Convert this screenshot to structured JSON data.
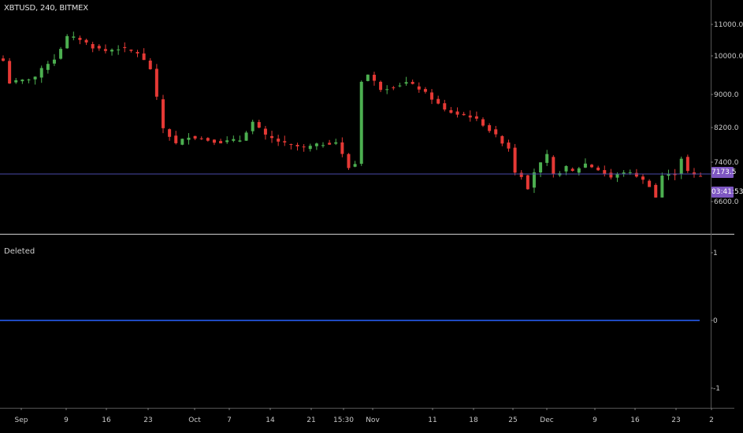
{
  "header": {
    "symbol_label": "XBTUSD, 240, BITMEX"
  },
  "indicator": {
    "label": "Deleted"
  },
  "badges": {
    "last_price": "7173.5",
    "countdown": "03:41:53"
  },
  "colors": {
    "background": "#000000",
    "up": "#4caf50",
    "down": "#e53935",
    "price_line": "#4a4aa8",
    "zero_line": "#2962ff",
    "badge": "#7e57c2",
    "axis_text": "#c8c8c8"
  },
  "chart_data": [
    {
      "type": "candlestick",
      "title": "",
      "ylim": [
        6200,
        11400
      ],
      "y_ticks": [
        "11000.0",
        "10000.0",
        "9000.0",
        "8200.0",
        "7400.0",
        "6600.0"
      ],
      "x_ticks": [
        "Sep",
        "9",
        "16",
        "23",
        "Oct",
        "7",
        "14",
        "21",
        "15:30",
        "Nov",
        "11",
        "18",
        "25",
        "Dec",
        "9",
        "16",
        "23",
        "2"
      ],
      "close_path": [
        [
          0,
          10100
        ],
        [
          1,
          9550
        ],
        [
          3,
          9600
        ],
        [
          5,
          9700
        ],
        [
          7,
          10050
        ],
        [
          8,
          10150
        ],
        [
          10,
          10700
        ],
        [
          12,
          10650
        ],
        [
          14,
          10450
        ],
        [
          16,
          10350
        ],
        [
          18,
          10420
        ],
        [
          21,
          10300
        ],
        [
          23,
          9900
        ],
        [
          25,
          8400
        ],
        [
          27,
          8000
        ],
        [
          29,
          8200
        ],
        [
          32,
          8100
        ],
        [
          34,
          8050
        ],
        [
          37,
          8100
        ],
        [
          39,
          8550
        ],
        [
          41,
          8200
        ],
        [
          44,
          8000
        ],
        [
          47,
          7900
        ],
        [
          50,
          8000
        ],
        [
          52,
          8050
        ],
        [
          54,
          7400
        ],
        [
          55,
          7500
        ],
        [
          56,
          9600
        ],
        [
          57,
          9750
        ],
        [
          59,
          9400
        ],
        [
          61,
          9450
        ],
        [
          63,
          9550
        ],
        [
          65,
          9400
        ],
        [
          67,
          9150
        ],
        [
          69,
          8850
        ],
        [
          71,
          8750
        ],
        [
          73,
          8700
        ],
        [
          75,
          8500
        ],
        [
          77,
          8200
        ],
        [
          79,
          7900
        ],
        [
          80,
          7300
        ],
        [
          81,
          7200
        ],
        [
          82,
          6900
        ],
        [
          83,
          7300
        ],
        [
          85,
          7700
        ],
        [
          86,
          7200
        ],
        [
          88,
          7400
        ],
        [
          89,
          7300
        ],
        [
          91,
          7500
        ],
        [
          93,
          7350
        ],
        [
          95,
          7150
        ],
        [
          97,
          7300
        ],
        [
          99,
          7200
        ],
        [
          101,
          6950
        ],
        [
          102,
          6650
        ],
        [
          103,
          7200
        ],
        [
          105,
          7250
        ],
        [
          106,
          7650
        ],
        [
          107,
          7300
        ],
        [
          108,
          7200
        ],
        [
          109,
          7180
        ]
      ]
    },
    {
      "type": "line",
      "title": "Deleted",
      "ylim": [
        -1,
        1
      ],
      "y_ticks": [
        "1",
        "0",
        "-1"
      ],
      "series": [
        {
          "values": [
            0,
            0
          ]
        }
      ]
    }
  ]
}
